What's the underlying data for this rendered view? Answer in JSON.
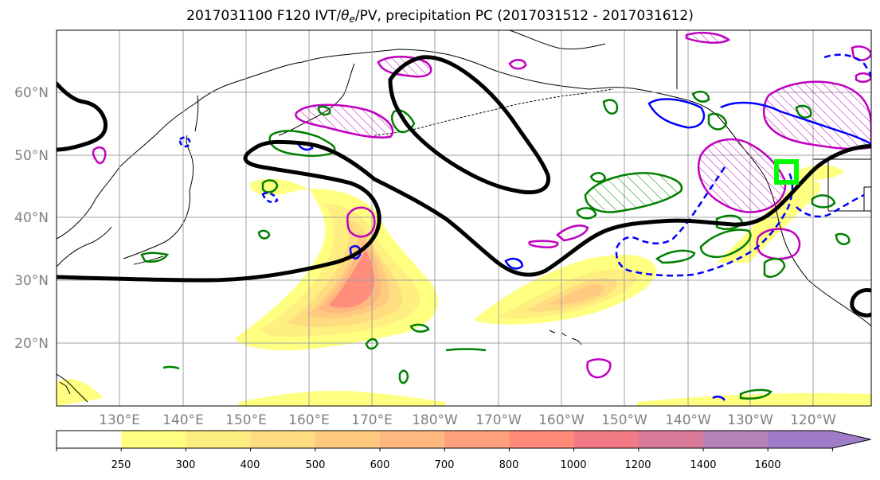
{
  "title": {
    "prefix": "2017031100 F120 IVT/",
    "theta": "θ",
    "theta_sub": "e",
    "suffix": "/PV, precipitation PC (2017031512 - 2017031612)"
  },
  "lat_labels": [
    "60°N",
    "50°N",
    "40°N",
    "30°N",
    "20°N"
  ],
  "lon_labels": [
    "130°E",
    "140°E",
    "150°E",
    "160°E",
    "170°E",
    "180°W",
    "170°W",
    "160°W",
    "150°W",
    "140°W",
    "130°W",
    "120°W"
  ],
  "colorbar": {
    "levels": [
      "250",
      "300",
      "400",
      "500",
      "600",
      "700",
      "800",
      "1000",
      "1200",
      "1400",
      "1600"
    ],
    "colors": [
      "#ffffff",
      "#ffff80",
      "#ffee80",
      "#ffdc80",
      "#ffca80",
      "#ffb880",
      "#ffa07c",
      "#ff8a7a",
      "#f27a85",
      "#d97a98",
      "#b681b8",
      "#a07cc8"
    ]
  },
  "colors": {
    "ivt_contour_black": "#000000",
    "pv_blue": "#0000ff",
    "precip_green": "#008000",
    "theta_magenta": "#c000c0",
    "target_box": "#00ff00",
    "grid": "#a0a0a0"
  }
}
